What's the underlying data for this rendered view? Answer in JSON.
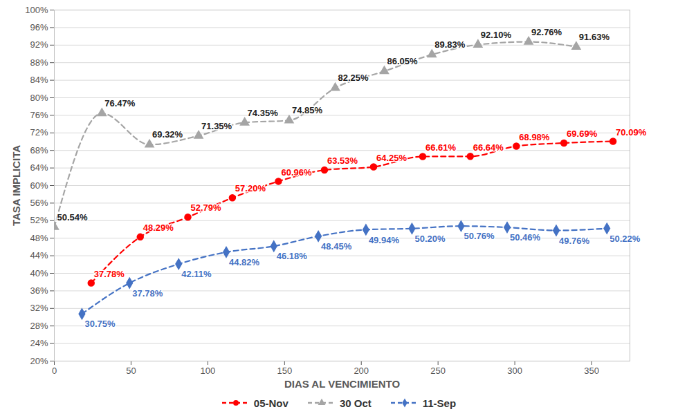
{
  "chart_data": {
    "type": "line",
    "x_label": "DIAS AL VENCIMIENTO",
    "y_label": "TASA IMPLICITA",
    "xlim": [
      0,
      375
    ],
    "xticks": [
      0,
      50,
      100,
      150,
      200,
      250,
      300,
      350
    ],
    "ylim": [
      20,
      100
    ],
    "yticks": [
      {
        "value": 20,
        "label": "20%"
      },
      {
        "value": 24,
        "label": "24%"
      },
      {
        "value": 28,
        "label": "28%"
      },
      {
        "value": 32,
        "label": "32%"
      },
      {
        "value": 36,
        "label": "36%"
      },
      {
        "value": 40,
        "label": "40%"
      },
      {
        "value": 44,
        "label": "44%"
      },
      {
        "value": 48,
        "label": "48%"
      },
      {
        "value": 52,
        "label": "52%"
      },
      {
        "value": 56,
        "label": "56%"
      },
      {
        "value": 60,
        "label": "60%"
      },
      {
        "value": 64,
        "label": "64%"
      },
      {
        "value": 68,
        "label": "68%"
      },
      {
        "value": 72,
        "label": "72%"
      },
      {
        "value": 76,
        "label": "76%"
      },
      {
        "value": 80,
        "label": "80%"
      },
      {
        "value": 84,
        "label": "84%"
      },
      {
        "value": 88,
        "label": "88%"
      },
      {
        "value": 92,
        "label": "92%"
      },
      {
        "value": 96,
        "label": "96%"
      },
      {
        "value": 100,
        "label": "100%"
      }
    ],
    "grid": true,
    "legend": "bottom",
    "data_labels": true,
    "series": [
      {
        "name": "05-Nov",
        "color": "#ff0000",
        "marker": "circle",
        "line_style": "dashed",
        "x": [
          24,
          56,
          87,
          116,
          146,
          176,
          208,
          240,
          271,
          301,
          332,
          364
        ],
        "values": [
          37.78,
          48.29,
          52.79,
          57.2,
          60.96,
          63.53,
          64.25,
          66.61,
          66.64,
          68.98,
          69.69,
          70.09
        ],
        "value_labels": [
          "37.78%",
          "48.29%",
          "52.79%",
          "57.20%",
          "60.96%",
          "63.53%",
          "64.25%",
          "66.61%",
          "66.64%",
          "68.98%",
          "69.69%",
          "70.09%"
        ]
      },
      {
        "name": "30 Oct",
        "color": "#a5a5a5",
        "marker": "triangle",
        "line_style": "dashed",
        "x": [
          0,
          31,
          62,
          94,
          124,
          153,
          183,
          215,
          246,
          276,
          309,
          340
        ],
        "values": [
          50.54,
          76.47,
          69.32,
          71.35,
          74.35,
          74.85,
          82.25,
          86.05,
          89.83,
          92.1,
          92.76,
          91.63
        ],
        "value_labels": [
          "50.54%",
          "76.47%",
          "69.32%",
          "71.35%",
          "74.35%",
          "74.85%",
          "82.25%",
          "86.05%",
          "89.83%",
          "92.10%",
          "92.76%",
          "91.63%"
        ]
      },
      {
        "name": "11-Sep",
        "color": "#4472c4",
        "marker": "diamond",
        "line_style": "dashed",
        "x": [
          18,
          49,
          81,
          112,
          143,
          172,
          203,
          233,
          265,
          295,
          327,
          360
        ],
        "values": [
          30.75,
          37.78,
          42.11,
          44.82,
          46.18,
          48.45,
          49.94,
          50.2,
          50.76,
          50.46,
          49.76,
          50.22
        ],
        "value_labels": [
          "30.75%",
          "37.78%",
          "42.11%",
          "44.82%",
          "46.18%",
          "48.45%",
          "49.94%",
          "50.20%",
          "50.76%",
          "50.46%",
          "49.76%",
          "50.22%"
        ]
      }
    ]
  }
}
